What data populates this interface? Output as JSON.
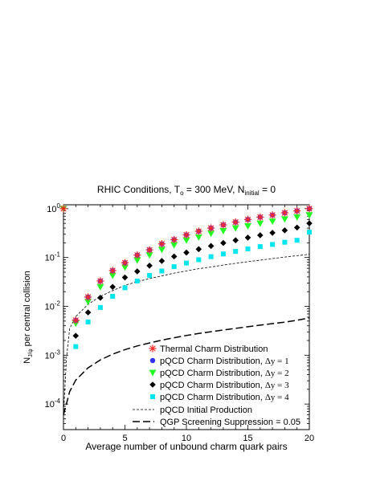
{
  "chart_data": {
    "type": "scatter",
    "title_main": "RHIC Conditions, T",
    "title_sub_o": "o",
    "title_mid": " = 300 MeV, N",
    "title_sub_initial": "initial",
    "title_end": " = 0",
    "xlabel": "Average number of unbound charm quark pairs",
    "ylabel_main": "N",
    "ylabel_sub": "J/ψ",
    "ylabel_end": " per central collision",
    "xlim": [
      0,
      20
    ],
    "ylim": [
      3e-05,
      1.2
    ],
    "yscale": "log",
    "x_ticks": [
      "0",
      "5",
      "10",
      "15",
      "20"
    ],
    "y_ticks": [
      {
        "base": "10",
        "exp": "0"
      },
      {
        "base": "10",
        "exp": "-1"
      },
      {
        "base": "10",
        "exp": "-2"
      },
      {
        "base": "10",
        "exp": "-3"
      },
      {
        "base": "10",
        "exp": "-4"
      }
    ],
    "legend_position": "bottom-right",
    "series": [
      {
        "name": "Thermal Charm Distribution",
        "marker": "asterisk",
        "color": "#ff2a2a",
        "x": [
          0,
          1,
          2,
          3,
          4,
          5,
          6,
          7,
          8,
          9,
          10,
          11,
          12,
          13,
          14,
          15,
          16,
          17,
          18,
          19,
          20
        ],
        "y": [
          1.0,
          0.0052,
          0.0155,
          0.033,
          0.054,
          0.078,
          0.112,
          0.143,
          0.19,
          0.232,
          0.29,
          0.345,
          0.4,
          0.465,
          0.53,
          0.6,
          0.67,
          0.74,
          0.82,
          0.9,
          1.0
        ]
      },
      {
        "name_pre": "pQCD Charm Distribution, ",
        "name_delta": "Δy = 1",
        "marker": "circle",
        "color": "#3030ff",
        "x": [
          1,
          2,
          3,
          4,
          5,
          6,
          7,
          8,
          9,
          10,
          11,
          12,
          13,
          14,
          15,
          16,
          17,
          18,
          19,
          20
        ],
        "y": [
          0.0052,
          0.0155,
          0.033,
          0.054,
          0.078,
          0.112,
          0.143,
          0.19,
          0.232,
          0.29,
          0.345,
          0.4,
          0.465,
          0.53,
          0.6,
          0.67,
          0.74,
          0.82,
          0.9,
          1.0
        ]
      },
      {
        "name_pre": "pQCD Charm Distribution, ",
        "name_delta": "Δy = 2",
        "marker": "triangle",
        "color": "#22ff22",
        "x": [
          0,
          1,
          2,
          3,
          4,
          5,
          6,
          7,
          8,
          9,
          10,
          11,
          12,
          13,
          14,
          15,
          16,
          17,
          18,
          19,
          20
        ],
        "y": [
          1.0,
          0.0045,
          0.0125,
          0.025,
          0.043,
          0.063,
          0.088,
          0.112,
          0.145,
          0.18,
          0.225,
          0.26,
          0.31,
          0.35,
          0.4,
          0.44,
          0.5,
          0.55,
          0.61,
          0.67,
          0.74
        ]
      },
      {
        "name_pre": "pQCD Charm Distribution, ",
        "name_delta": "Δy = 3",
        "marker": "diamond",
        "color": "#000000",
        "x": [
          1,
          2,
          3,
          4,
          5,
          6,
          7,
          8,
          9,
          10,
          11,
          12,
          13,
          14,
          15,
          16,
          17,
          18,
          19,
          20
        ],
        "y": [
          0.0025,
          0.0075,
          0.015,
          0.025,
          0.039,
          0.052,
          0.068,
          0.085,
          0.105,
          0.126,
          0.148,
          0.172,
          0.198,
          0.225,
          0.255,
          0.285,
          0.32,
          0.36,
          0.41,
          0.5
        ]
      },
      {
        "name_pre": "pQCD Charm Distribution, ",
        "name_delta": "Δy = 4",
        "marker": "square",
        "color": "#00e5ee",
        "x": [
          1,
          2,
          3,
          4,
          5,
          6,
          7,
          8,
          9,
          10,
          11,
          12,
          13,
          14,
          15,
          16,
          17,
          18,
          19,
          20
        ],
        "y": [
          0.0015,
          0.0048,
          0.0095,
          0.016,
          0.024,
          0.033,
          0.043,
          0.053,
          0.065,
          0.077,
          0.09,
          0.104,
          0.118,
          0.133,
          0.15,
          0.167,
          0.185,
          0.205,
          0.225,
          0.33
        ]
      },
      {
        "name": "pQCD Initial Production",
        "marker": "line-short-dash",
        "color": "#000000",
        "x": [
          0,
          0.25,
          0.5,
          1,
          2,
          3,
          4,
          5,
          6,
          7,
          8,
          9,
          10,
          11,
          12,
          13,
          14,
          15,
          16,
          17,
          18,
          19,
          20
        ],
        "y": [
          6e-05,
          0.0009,
          0.0035,
          0.0062,
          0.011,
          0.016,
          0.021,
          0.027,
          0.032,
          0.037,
          0.042,
          0.048,
          0.053,
          0.059,
          0.064,
          0.07,
          0.076,
          0.082,
          0.088,
          0.095,
          0.102,
          0.109,
          0.116
        ]
      },
      {
        "name": "QGP Screening Suppression = 0.05",
        "marker": "line-long-dash",
        "color": "#000000",
        "x": [
          0,
          0.5,
          1,
          2,
          3,
          4,
          5,
          6,
          7,
          8,
          9,
          10,
          11,
          12,
          13,
          14,
          15,
          16,
          17,
          18,
          19,
          20
        ],
        "y": [
          6e-05,
          0.00018,
          0.00031,
          0.00055,
          0.0008,
          0.00105,
          0.0013,
          0.00155,
          0.00178,
          0.00203,
          0.00228,
          0.00253,
          0.00278,
          0.00303,
          0.00328,
          0.00355,
          0.00383,
          0.00412,
          0.00443,
          0.00475,
          0.0052,
          0.0058
        ]
      }
    ]
  }
}
